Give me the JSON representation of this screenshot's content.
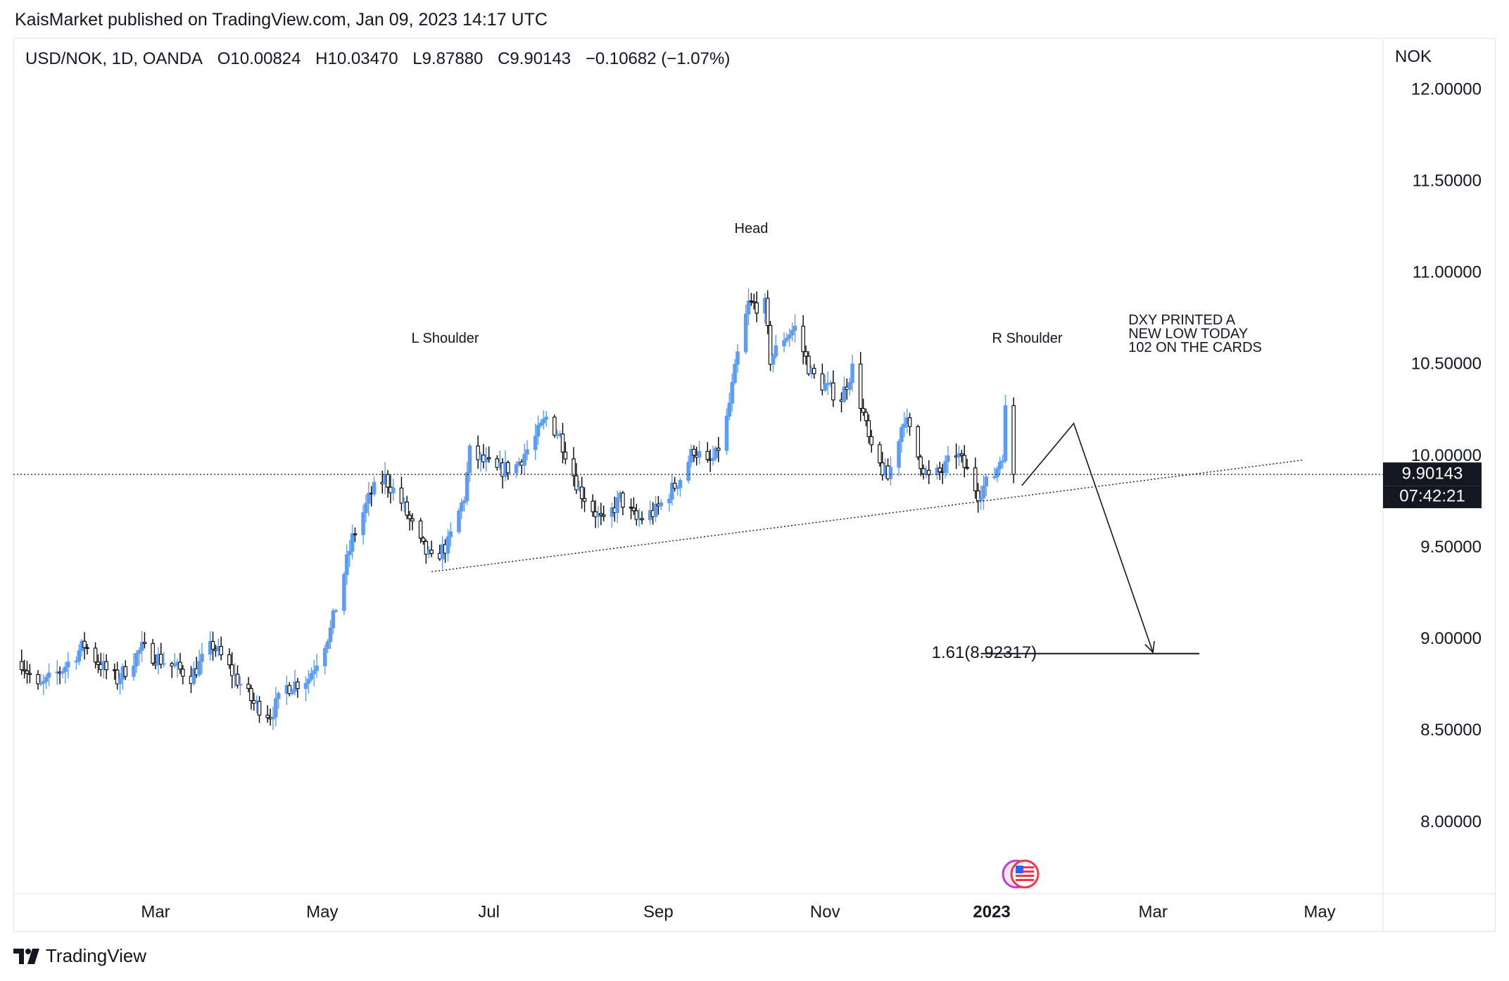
{
  "header": {
    "publisher": "KaisMarket published on TradingView.com, Jan 09, 2023 14:17 UTC"
  },
  "legend": {
    "symbol": "USD/NOK, 1D, OANDA",
    "open": "O10.00824",
    "high": "H10.03470",
    "low": "L9.87880",
    "close": "C9.90143",
    "change": "−0.10682 (−1.07%)"
  },
  "axis": {
    "currency": "NOK",
    "price_box": "9.90143",
    "countdown_box": "07:42:21"
  },
  "footer": {
    "brand": "TradingView"
  },
  "colors": {
    "up": "#5b9cf6",
    "down": "#000000",
    "price_box": "#131722",
    "grid_border": "#e0e3eb"
  },
  "chart_data": {
    "type": "candlestick",
    "title": "USD/NOK, 1D, OANDA",
    "ylim": [
      7.7,
      12.3
    ],
    "xlim": [
      "2022-01-11",
      "2023-05-31"
    ],
    "y_ticks": [
      "12.00000",
      "11.50000",
      "11.00000",
      "10.50000",
      "10.00000",
      "9.50000",
      "9.00000",
      "8.50000",
      "8.00000"
    ],
    "x_ticks": [
      {
        "label": "Mar",
        "date": "2022-03-01"
      },
      {
        "label": "May",
        "date": "2022-05-01"
      },
      {
        "label": "Jul",
        "date": "2022-07-01"
      },
      {
        "label": "Sep",
        "date": "2022-09-01"
      },
      {
        "label": "Nov",
        "date": "2022-11-01"
      },
      {
        "label": "2023",
        "date": "2023-01-01"
      },
      {
        "label": "Mar",
        "date": "2023-03-01"
      },
      {
        "label": "May",
        "date": "2023-05-01"
      }
    ],
    "last_price": 9.90143,
    "price_path": [
      [
        "2022-01-11",
        8.88
      ],
      [
        "2022-01-17",
        8.73
      ],
      [
        "2022-01-26",
        8.84
      ],
      [
        "2022-02-03",
        8.97
      ],
      [
        "2022-02-09",
        8.86
      ],
      [
        "2022-02-15",
        8.78
      ],
      [
        "2022-02-24",
        8.95
      ],
      [
        "2022-03-04",
        8.88
      ],
      [
        "2022-03-14",
        8.8
      ],
      [
        "2022-03-22",
        8.97
      ],
      [
        "2022-03-29",
        8.82
      ],
      [
        "2022-04-06",
        8.65
      ],
      [
        "2022-04-12",
        8.59
      ],
      [
        "2022-04-18",
        8.74
      ],
      [
        "2022-04-26",
        8.79
      ],
      [
        "2022-05-04",
        9.05
      ],
      [
        "2022-05-12",
        9.55
      ],
      [
        "2022-05-19",
        9.8
      ],
      [
        "2022-05-24",
        9.88
      ],
      [
        "2022-05-30",
        9.75
      ],
      [
        "2022-06-06",
        9.52
      ],
      [
        "2022-06-10",
        9.43
      ],
      [
        "2022-06-16",
        9.52
      ],
      [
        "2022-06-22",
        9.78
      ],
      [
        "2022-06-24",
        10.02
      ],
      [
        "2022-07-04",
        9.92
      ],
      [
        "2022-07-11",
        9.95
      ],
      [
        "2022-07-18",
        10.1
      ],
      [
        "2022-07-22",
        10.21
      ],
      [
        "2022-07-27",
        10.11
      ],
      [
        "2022-08-03",
        9.82
      ],
      [
        "2022-08-12",
        9.63
      ],
      [
        "2022-08-18",
        9.77
      ],
      [
        "2022-08-24",
        9.65
      ],
      [
        "2022-08-31",
        9.7
      ],
      [
        "2022-09-09",
        9.88
      ],
      [
        "2022-09-14",
        10.04
      ],
      [
        "2022-09-19",
        9.95
      ],
      [
        "2022-09-22",
        10.0
      ],
      [
        "2022-09-26",
        10.2
      ],
      [
        "2022-09-30",
        10.55
      ],
      [
        "2022-10-04",
        10.83
      ],
      [
        "2022-10-10",
        10.82
      ],
      [
        "2022-10-12",
        10.53
      ],
      [
        "2022-10-17",
        10.65
      ],
      [
        "2022-10-21",
        10.7
      ],
      [
        "2022-10-27",
        10.45
      ],
      [
        "2022-11-01",
        10.38
      ],
      [
        "2022-11-07",
        10.32
      ],
      [
        "2022-11-11",
        10.48
      ],
      [
        "2022-11-15",
        10.23
      ],
      [
        "2022-11-18",
        10.02
      ],
      [
        "2022-11-24",
        9.88
      ],
      [
        "2022-11-30",
        10.22
      ],
      [
        "2022-12-05",
        10.0
      ],
      [
        "2022-12-09",
        9.88
      ],
      [
        "2022-12-14",
        9.92
      ],
      [
        "2022-12-19",
        10.02
      ],
      [
        "2022-12-23",
        9.92
      ],
      [
        "2022-12-27",
        9.8
      ],
      [
        "2023-01-02",
        9.9
      ],
      [
        "2023-01-05",
        10.02
      ],
      [
        "2023-01-06",
        10.25
      ],
      [
        "2023-01-09",
        9.9
      ]
    ],
    "annotations": [
      {
        "type": "label",
        "text": "L Shoulder",
        "date": "2022-06-15",
        "price": 10.62
      },
      {
        "type": "label",
        "text": "Head",
        "date": "2022-10-05",
        "price": 11.22
      },
      {
        "type": "label",
        "text": "R Shoulder",
        "date": "2023-01-14",
        "price": 10.62
      },
      {
        "type": "label",
        "text": "DXY PRINTED A",
        "date": "2023-02-20",
        "price": 10.72
      },
      {
        "type": "label",
        "text": "NEW LOW TODAY",
        "date": "2023-02-20",
        "price": 10.645
      },
      {
        "type": "label",
        "text": "102 ON THE CARDS",
        "date": "2023-02-20",
        "price": 10.57
      },
      {
        "type": "label",
        "text": "1.61(8.92317)",
        "date": "2022-12-10",
        "price": 8.92317
      },
      {
        "type": "hline",
        "price": 8.92317,
        "from": "2022-12-28",
        "to": "2023-03-18"
      },
      {
        "type": "trendline",
        "style": "dotted",
        "from": [
          "2022-06-10",
          9.37
        ],
        "to": [
          "2023-04-25",
          9.98
        ]
      },
      {
        "type": "hline",
        "style": "dotted",
        "price": 9.90143
      },
      {
        "type": "path",
        "points": [
          [
            "2023-01-12",
            9.84
          ],
          [
            "2023-01-31",
            10.18
          ],
          [
            "2023-03-01",
            8.93
          ]
        ],
        "arrow": true
      }
    ]
  }
}
